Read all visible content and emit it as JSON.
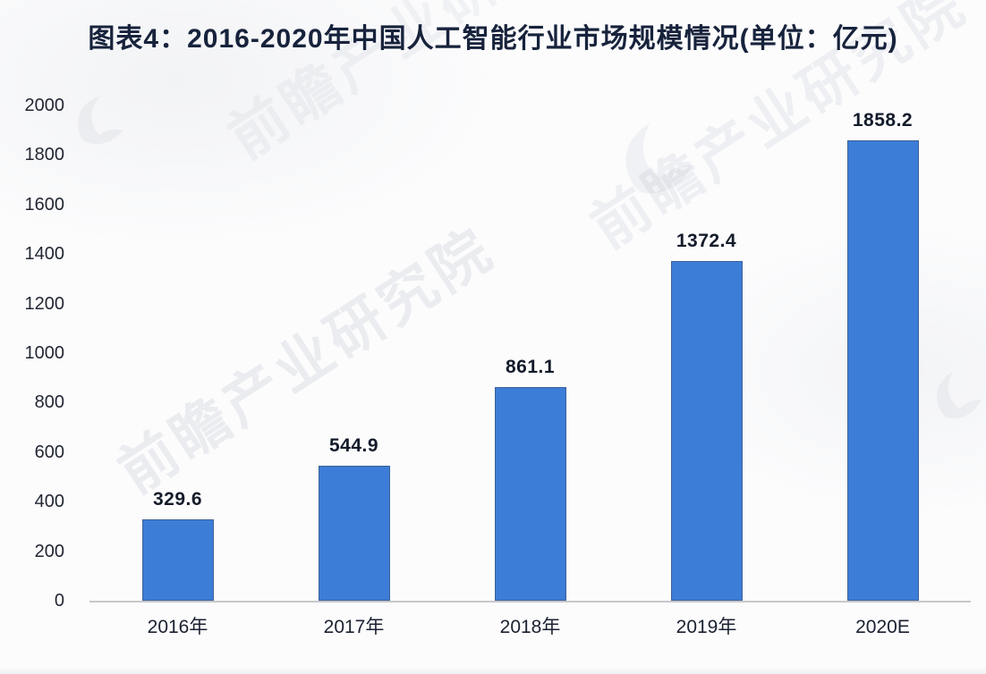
{
  "title": "图表4：2016-2020年中国人工智能行业市场规模情况(单位：亿元)",
  "watermark": {
    "text": "前瞻产业研究院",
    "logo": "qianzhan-swoosh"
  },
  "chart_data": {
    "type": "bar",
    "title": "图表4：2016-2020年中国人工智能行业市场规模情况(单位：亿元)",
    "categories": [
      "2016年",
      "2017年",
      "2018年",
      "2019年",
      "2020E"
    ],
    "values": [
      329.6,
      544.9,
      861.1,
      1372.4,
      1858.2
    ],
    "data_labels": [
      "329.6",
      "544.9",
      "861.1",
      "1372.4",
      "1858.2"
    ],
    "xlabel": "",
    "ylabel": "",
    "unit": "亿元",
    "ylim": [
      0,
      2000
    ],
    "yticks": [
      0,
      200,
      400,
      600,
      800,
      1000,
      1200,
      1400,
      1600,
      1800,
      2000
    ],
    "grid": false,
    "legend": false,
    "bar_color": "#3c7dd7",
    "title_color": "#17233c"
  }
}
